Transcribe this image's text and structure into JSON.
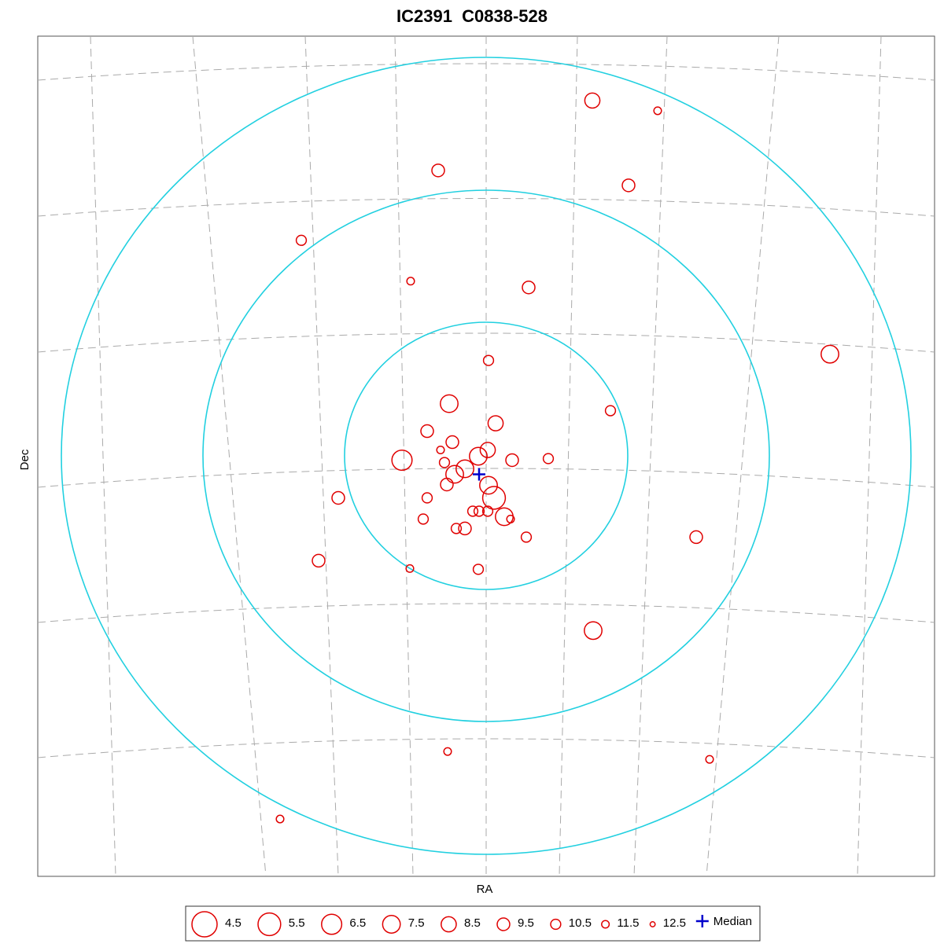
{
  "chart_data": {
    "type": "scatter",
    "title": "IC2391  C0838-528",
    "x_label": "RA",
    "y_label": "Dec",
    "xlim": [
      -570,
      570
    ],
    "ylim": [
      -535,
      535
    ],
    "color": "#e00000",
    "x": [
      135,
      218,
      -61,
      181,
      -235,
      -96,
      54,
      437,
      3,
      -47,
      158,
      12,
      -75,
      -43,
      -58,
      2,
      -10,
      -107,
      33,
      79,
      -53,
      -27,
      -40,
      3,
      -50,
      10,
      -188,
      -75,
      -17,
      -9,
      2,
      23,
      31,
      -80,
      -38,
      -27,
      51,
      267,
      -213,
      -97,
      -10,
      136,
      -49,
      284,
      -262
    ],
    "values": [
      453,
      440,
      364,
      345,
      275,
      223,
      215,
      130,
      122,
      67,
      58,
      42,
      32,
      18,
      8,
      8,
      0,
      -5,
      -5,
      -3,
      -8,
      -16,
      -23,
      -37,
      -36,
      -53,
      -53,
      -53,
      -70,
      -70,
      -70,
      -77,
      -80,
      -80,
      -92,
      -92,
      -103,
      -103,
      -133,
      -143,
      -144,
      -222,
      -376,
      -386,
      -462
    ],
    "sizes": [
      8.5,
      11.5,
      9.5,
      9.5,
      10.5,
      11.5,
      9.5,
      7.5,
      10.5,
      7.5,
      10.5,
      8.5,
      9.5,
      9.5,
      11.5,
      8.5,
      7.5,
      6.5,
      9.5,
      10.5,
      10.5,
      7.5,
      7.5,
      7.5,
      9.5,
      5.5,
      9.5,
      10.5,
      10.5,
      10.5,
      10.5,
      7.5,
      11.5,
      10.5,
      10.5,
      9.5,
      10.5,
      9.5,
      9.5,
      11.5,
      10.5,
      7.5,
      11.5,
      11.5,
      11.5
    ],
    "legend_sizes": [
      4.5,
      5.5,
      6.5,
      7.5,
      8.5,
      9.5,
      10.5,
      11.5,
      12.5
    ],
    "median": {
      "label": "Median",
      "x": -9,
      "y": -23,
      "color": "#0000cc"
    }
  }
}
